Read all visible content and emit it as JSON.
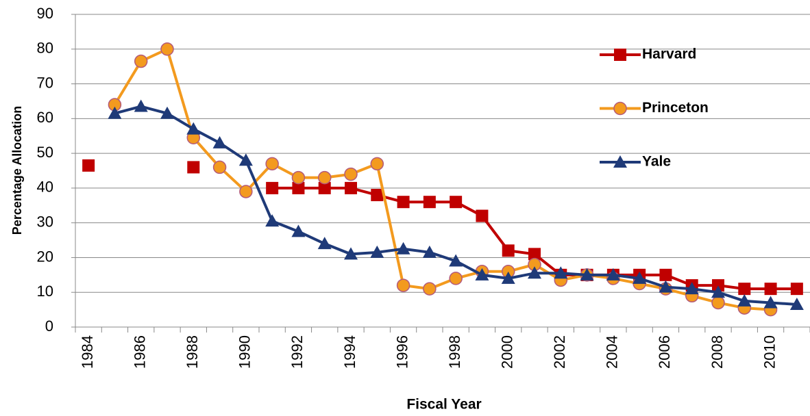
{
  "chart_data": {
    "type": "line",
    "x_label": "Fiscal Year",
    "y_label": "Percentage Allocation",
    "categories": [
      "1984",
      null,
      "1986",
      null,
      "1988",
      null,
      "1990",
      null,
      "1992",
      null,
      "1994",
      null,
      "1996",
      null,
      "1998",
      null,
      "2000",
      null,
      "2002",
      null,
      "2004",
      null,
      "2006",
      null,
      "2008",
      null,
      "2010",
      null
    ],
    "series": [
      {
        "name": "Harvard",
        "color": "#c00000",
        "marker": "square",
        "values": [
          46.5,
          null,
          null,
          null,
          46,
          null,
          null,
          40,
          40,
          40,
          40,
          38,
          36,
          36,
          36,
          32,
          22,
          21,
          15,
          15,
          15,
          15,
          15,
          12,
          12,
          11,
          11,
          11
        ]
      },
      {
        "name": "Princeton",
        "color": "#f39a1e",
        "marker": "circle",
        "values": [
          null,
          64,
          76.5,
          80,
          54.5,
          46,
          39,
          47,
          43,
          43,
          44,
          47,
          12,
          11,
          14,
          16,
          16,
          18,
          13.5,
          15,
          14,
          12.5,
          11,
          9,
          7,
          5.5,
          5,
          null
        ]
      },
      {
        "name": "Yale",
        "color": "#1f3a78",
        "marker": "triangle",
        "values": [
          null,
          61.5,
          63.5,
          61.5,
          57,
          53,
          48,
          30.5,
          27.5,
          24,
          21,
          21.5,
          22.5,
          21.5,
          19,
          15,
          14,
          15.5,
          15.5,
          15,
          15,
          14,
          11.5,
          11,
          10,
          7.5,
          7,
          6.5
        ]
      }
    ],
    "ylim": [
      0,
      90
    ],
    "yticks": [
      0,
      10,
      20,
      30,
      40,
      50,
      60,
      70,
      80,
      90
    ],
    "grid": true,
    "legend": "upper right"
  }
}
